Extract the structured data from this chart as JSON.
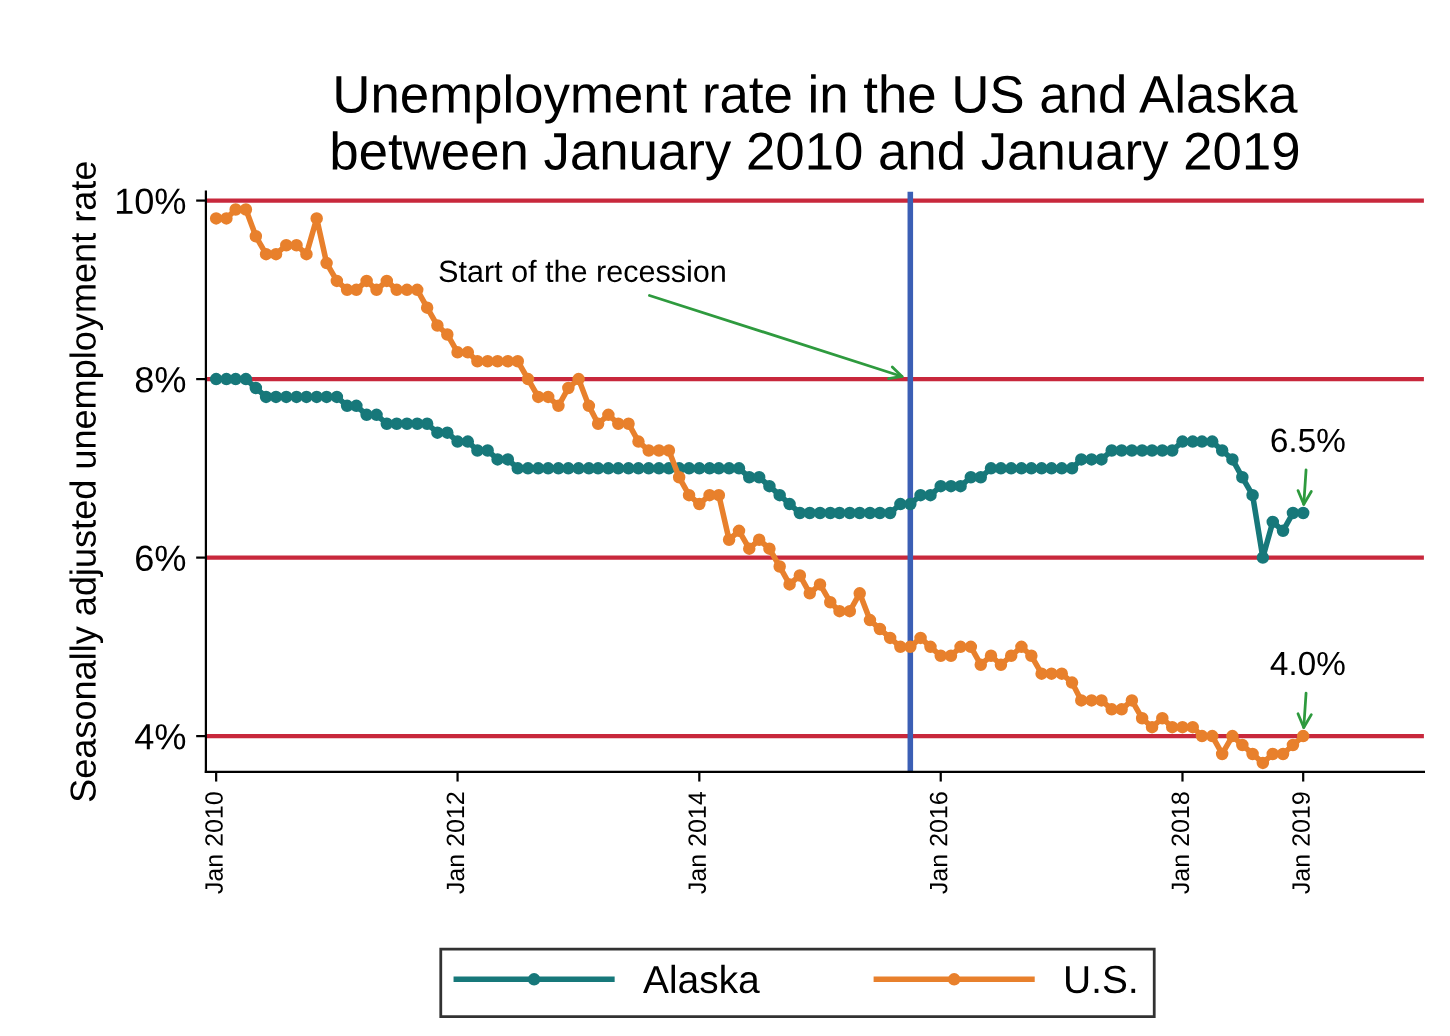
{
  "chart_data": {
    "type": "line",
    "title": "Unemployment rate in the US and Alaska\nbetween January 2010 and January 2019",
    "ylabel": "Seasonally adjusted unemployment rate",
    "x": [
      "2010-01",
      "2010-02",
      "2010-03",
      "2010-04",
      "2010-05",
      "2010-06",
      "2010-07",
      "2010-08",
      "2010-09",
      "2010-10",
      "2010-11",
      "2010-12",
      "2011-01",
      "2011-02",
      "2011-03",
      "2011-04",
      "2011-05",
      "2011-06",
      "2011-07",
      "2011-08",
      "2011-09",
      "2011-10",
      "2011-11",
      "2011-12",
      "2012-01",
      "2012-02",
      "2012-03",
      "2012-04",
      "2012-05",
      "2012-06",
      "2012-07",
      "2012-08",
      "2012-09",
      "2012-10",
      "2012-11",
      "2012-12",
      "2013-01",
      "2013-02",
      "2013-03",
      "2013-04",
      "2013-05",
      "2013-06",
      "2013-07",
      "2013-08",
      "2013-09",
      "2013-10",
      "2013-11",
      "2013-12",
      "2014-01",
      "2014-02",
      "2014-03",
      "2014-04",
      "2014-05",
      "2014-06",
      "2014-07",
      "2014-08",
      "2014-09",
      "2014-10",
      "2014-11",
      "2014-12",
      "2015-01",
      "2015-02",
      "2015-03",
      "2015-04",
      "2015-05",
      "2015-06",
      "2015-07",
      "2015-08",
      "2015-09",
      "2015-10",
      "2015-11",
      "2015-12",
      "2016-01",
      "2016-02",
      "2016-03",
      "2016-04",
      "2016-05",
      "2016-06",
      "2016-07",
      "2016-08",
      "2016-09",
      "2016-10",
      "2016-11",
      "2016-12",
      "2017-01",
      "2017-02",
      "2017-03",
      "2017-04",
      "2017-05",
      "2017-06",
      "2017-07",
      "2017-08",
      "2017-09",
      "2017-10",
      "2017-11",
      "2017-12",
      "2018-01",
      "2018-02",
      "2018-03",
      "2018-04",
      "2018-05",
      "2018-06",
      "2018-07",
      "2018-08",
      "2018-09",
      "2018-10",
      "2018-11",
      "2018-12",
      "2019-01"
    ],
    "series": [
      {
        "name": "Alaska",
        "color": "#17787a",
        "values": [
          8.0,
          8.0,
          8.0,
          8.0,
          7.9,
          7.8,
          7.8,
          7.8,
          7.8,
          7.8,
          7.8,
          7.8,
          7.8,
          7.7,
          7.7,
          7.6,
          7.6,
          7.5,
          7.5,
          7.5,
          7.5,
          7.5,
          7.4,
          7.4,
          7.3,
          7.3,
          7.2,
          7.2,
          7.1,
          7.1,
          7.0,
          7.0,
          7.0,
          7.0,
          7.0,
          7.0,
          7.0,
          7.0,
          7.0,
          7.0,
          7.0,
          7.0,
          7.0,
          7.0,
          7.0,
          7.0,
          7.0,
          7.0,
          7.0,
          7.0,
          7.0,
          7.0,
          7.0,
          6.9,
          6.9,
          6.8,
          6.7,
          6.6,
          6.5,
          6.5,
          6.5,
          6.5,
          6.5,
          6.5,
          6.5,
          6.5,
          6.5,
          6.5,
          6.6,
          6.6,
          6.7,
          6.7,
          6.8,
          6.8,
          6.8,
          6.9,
          6.9,
          7.0,
          7.0,
          7.0,
          7.0,
          7.0,
          7.0,
          7.0,
          7.0,
          7.0,
          7.1,
          7.1,
          7.1,
          7.2,
          7.2,
          7.2,
          7.2,
          7.2,
          7.2,
          7.2,
          7.3,
          7.3,
          7.3,
          7.3,
          7.2,
          7.1,
          6.9,
          6.7,
          6.0,
          6.4,
          6.3,
          6.5,
          6.5
        ]
      },
      {
        "name": "U.S.",
        "color": "#e8802c",
        "values": [
          9.8,
          9.8,
          9.9,
          9.9,
          9.6,
          9.4,
          9.4,
          9.5,
          9.5,
          9.4,
          9.8,
          9.3,
          9.1,
          9.0,
          9.0,
          9.1,
          9.0,
          9.1,
          9.0,
          9.0,
          9.0,
          8.8,
          8.6,
          8.5,
          8.3,
          8.3,
          8.2,
          8.2,
          8.2,
          8.2,
          8.2,
          8.0,
          7.8,
          7.8,
          7.7,
          7.9,
          8.0,
          7.7,
          7.5,
          7.6,
          7.5,
          7.5,
          7.3,
          7.2,
          7.2,
          7.2,
          6.9,
          6.7,
          6.6,
          6.7,
          6.7,
          6.2,
          6.3,
          6.1,
          6.2,
          6.1,
          5.9,
          5.7,
          5.8,
          5.6,
          5.7,
          5.5,
          5.4,
          5.4,
          5.6,
          5.3,
          5.2,
          5.1,
          5.0,
          5.0,
          5.1,
          5.0,
          4.9,
          4.9,
          5.0,
          5.0,
          4.8,
          4.9,
          4.8,
          4.9,
          5.0,
          4.9,
          4.7,
          4.7,
          4.7,
          4.6,
          4.4,
          4.4,
          4.4,
          4.3,
          4.3,
          4.4,
          4.2,
          4.1,
          4.2,
          4.1,
          4.1,
          4.1,
          4.0,
          4.0,
          3.8,
          4.0,
          3.9,
          3.8,
          3.7,
          3.8,
          3.8,
          3.9,
          4.0
        ]
      }
    ],
    "xlim": [
      "2009-12",
      "2020-01"
    ],
    "xticks": [
      {
        "value": "2010-01",
        "label": "Jan 2010"
      },
      {
        "value": "2012-01",
        "label": "Jan 2012"
      },
      {
        "value": "2014-01",
        "label": "Jan 2014"
      },
      {
        "value": "2016-01",
        "label": "Jan 2016"
      },
      {
        "value": "2018-01",
        "label": "Jan 2018"
      },
      {
        "value": "2019-01",
        "label": "Jan 2019"
      }
    ],
    "ylim": [
      3.6,
      10.1
    ],
    "yticks": [
      {
        "value": 4,
        "label": "4%"
      },
      {
        "value": 6,
        "label": "6%"
      },
      {
        "value": 8,
        "label": "8%"
      },
      {
        "value": 10,
        "label": "10%"
      }
    ],
    "grid": "y",
    "ref_lines": [
      {
        "axis": "x",
        "value": "2015-10",
        "color": "#3b5fb5"
      }
    ],
    "annotations": [
      {
        "text": "Start of the recession",
        "x": "2015-10",
        "y": 8.0
      },
      {
        "text": "6.5%",
        "x": "2019-01",
        "y": 6.5
      },
      {
        "text": "4.0%",
        "x": "2019-01",
        "y": 4.0
      }
    ],
    "legend": "bottom",
    "marker": "circle",
    "line_style": "solid"
  }
}
